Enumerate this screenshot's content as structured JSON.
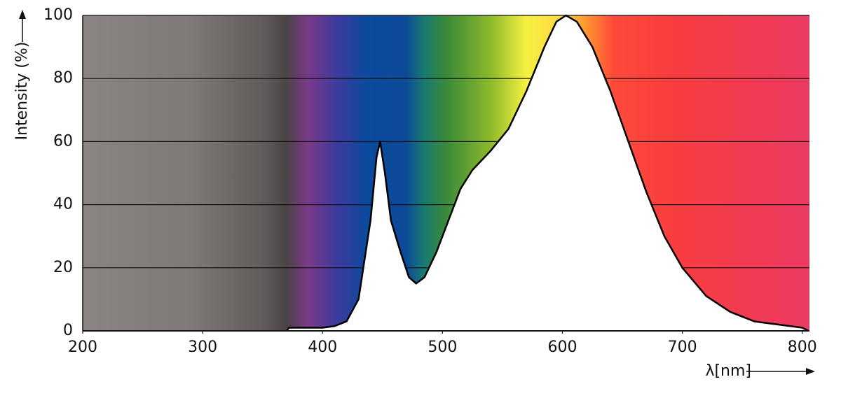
{
  "chart_data": {
    "type": "area",
    "x_label": "λ[nm]",
    "y_label": "Intensity (%)",
    "x": [
      370,
      372,
      380,
      400,
      410,
      420,
      430,
      440,
      445,
      448,
      452,
      457,
      465,
      472,
      478,
      485,
      495,
      505,
      515,
      525,
      540,
      555,
      570,
      585,
      595,
      603,
      612,
      625,
      640,
      655,
      670,
      685,
      700,
      720,
      740,
      760,
      780,
      800,
      805
    ],
    "values": [
      0,
      1,
      1,
      1,
      1.5,
      3,
      10,
      35,
      55,
      60,
      50,
      35,
      25,
      17,
      15,
      17,
      25,
      35,
      45,
      51,
      57,
      64,
      76,
      90,
      98,
      100,
      98,
      90,
      76,
      60,
      44,
      30,
      20,
      11,
      6,
      3,
      2,
      1,
      0
    ],
    "color": "#ffffff",
    "line_color": "#000000",
    "xlim": [
      200,
      806
    ],
    "ylim": [
      0,
      100
    ],
    "xticks": [
      200,
      300,
      400,
      500,
      600,
      700,
      800
    ],
    "yticks": [
      0,
      20,
      40,
      60,
      80,
      100
    ],
    "grid": true
  }
}
